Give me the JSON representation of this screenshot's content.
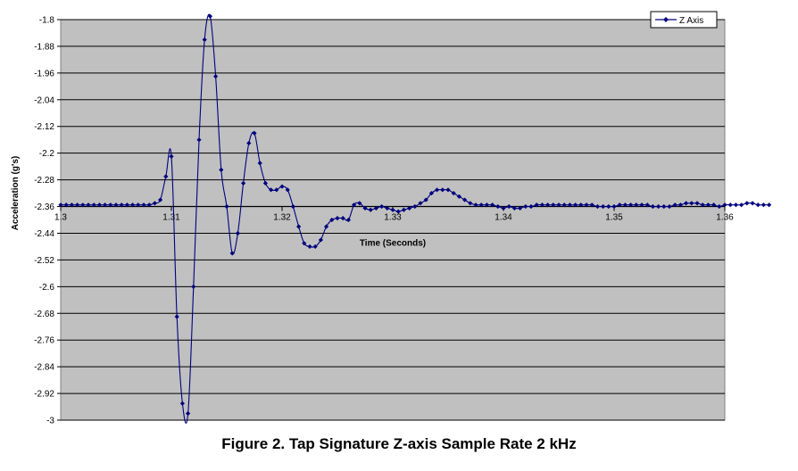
{
  "caption": "Figure 2.  Tap Signature Z-axis Sample Rate 2 kHz",
  "colors": {
    "series": "#000080",
    "plot_bg": "#c0c0c0",
    "gridline": "#000000"
  },
  "chart_data": {
    "type": "line",
    "xlabel": "Time (Seconds)",
    "ylabel": "Acceleration (g's)",
    "xlim": [
      1.3,
      1.36
    ],
    "ylim": [
      -3.0,
      -1.8
    ],
    "x_ticks": [
      1.3,
      1.31,
      1.32,
      1.33,
      1.34,
      1.35,
      1.36
    ],
    "x_tick_labels": [
      "1.3",
      "1.31",
      "1.32",
      "1.33",
      "1.34",
      "1.35",
      "1.36"
    ],
    "y_ticks": [
      -1.8,
      -1.88,
      -1.96,
      -2.04,
      -2.12,
      -2.2,
      -2.28,
      -2.36,
      -2.44,
      -2.52,
      -2.6,
      -2.68,
      -2.76,
      -2.84,
      -2.92,
      -3.0
    ],
    "y_tick_labels": [
      "-1.8",
      "-1.88",
      "-1.96",
      "-2.04",
      "-2.12",
      "-2.2",
      "-2.28",
      "-2.36",
      "-2.44",
      "-2.52",
      "-2.6",
      "-2.68",
      "-2.76",
      "-2.84",
      "-2.92",
      "-3"
    ],
    "x_axis_crosses_at": -2.36,
    "grid": "horizontal",
    "legend_position": "top-right",
    "series": [
      {
        "name": "Z Axis",
        "marker": "diamond",
        "x_start": 1.3,
        "x_step": 0.0005,
        "values": [
          -2.355,
          -2.355,
          -2.355,
          -2.355,
          -2.355,
          -2.355,
          -2.355,
          -2.355,
          -2.355,
          -2.355,
          -2.355,
          -2.355,
          -2.355,
          -2.355,
          -2.355,
          -2.355,
          -2.355,
          -2.35,
          -2.34,
          -2.27,
          -2.21,
          -2.69,
          -2.95,
          -2.98,
          -2.6,
          -2.16,
          -1.86,
          -1.79,
          -1.97,
          -2.25,
          -2.36,
          -2.5,
          -2.44,
          -2.29,
          -2.17,
          -2.14,
          -2.23,
          -2.29,
          -2.31,
          -2.31,
          -2.3,
          -2.31,
          -2.36,
          -2.42,
          -2.47,
          -2.48,
          -2.48,
          -2.46,
          -2.42,
          -2.4,
          -2.395,
          -2.395,
          -2.4,
          -2.355,
          -2.35,
          -2.365,
          -2.37,
          -2.365,
          -2.36,
          -2.365,
          -2.37,
          -2.375,
          -2.37,
          -2.365,
          -2.36,
          -2.35,
          -2.34,
          -2.32,
          -2.31,
          -2.31,
          -2.31,
          -2.32,
          -2.33,
          -2.34,
          -2.35,
          -2.355,
          -2.355,
          -2.355,
          -2.355,
          -2.36,
          -2.365,
          -2.36,
          -2.365,
          -2.365,
          -2.36,
          -2.36,
          -2.355,
          -2.355,
          -2.355,
          -2.355,
          -2.355,
          -2.355,
          -2.355,
          -2.355,
          -2.355,
          -2.355,
          -2.355,
          -2.36,
          -2.36,
          -2.36,
          -2.36,
          -2.355,
          -2.355,
          -2.355,
          -2.355,
          -2.355,
          -2.355,
          -2.36,
          -2.36,
          -2.36,
          -2.36,
          -2.355,
          -2.355,
          -2.35,
          -2.35,
          -2.35,
          -2.355,
          -2.355,
          -2.355,
          -2.36,
          -2.355,
          -2.355,
          -2.355,
          -2.355,
          -2.35,
          -2.35,
          -2.355,
          -2.355,
          -2.355
        ]
      }
    ]
  }
}
